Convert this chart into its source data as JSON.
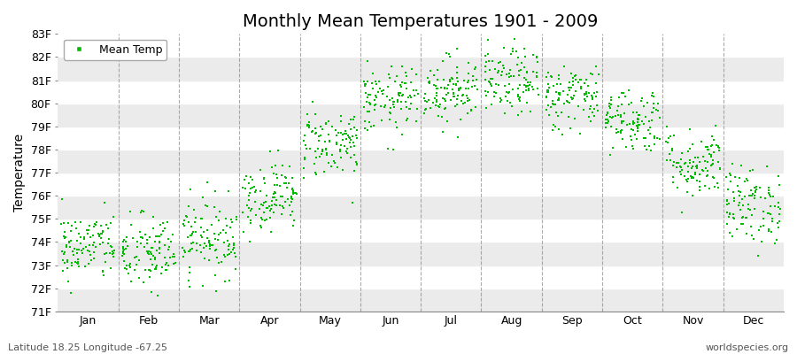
{
  "title": "Monthly Mean Temperatures 1901 - 2009",
  "ylabel": "Temperature",
  "xlabel": "",
  "latitude_label": "Latitude 18.25 Longitude -67.25",
  "watermark": "worldspecies.org",
  "legend_label": "Mean Temp",
  "dot_color": "#00bb00",
  "background_color": "#ffffff",
  "stripe_color_light": "#ebebeb",
  "stripe_color_white": "#ffffff",
  "ytick_labels": [
    "71F",
    "72F",
    "73F",
    "74F",
    "75F",
    "76F",
    "77F",
    "78F",
    "79F",
    "80F",
    "81F",
    "82F",
    "83F"
  ],
  "ytick_values": [
    71,
    72,
    73,
    74,
    75,
    76,
    77,
    78,
    79,
    80,
    81,
    82,
    83
  ],
  "ylim": [
    71,
    83
  ],
  "month_names": [
    "Jan",
    "Feb",
    "Mar",
    "Apr",
    "May",
    "Jun",
    "Jul",
    "Aug",
    "Sep",
    "Oct",
    "Nov",
    "Dec"
  ],
  "month_mean_temps": [
    73.8,
    73.5,
    74.2,
    76.0,
    78.3,
    80.1,
    80.6,
    80.9,
    80.3,
    79.3,
    77.4,
    75.6
  ],
  "month_std_temps": [
    0.75,
    0.85,
    0.85,
    0.75,
    0.75,
    0.72,
    0.72,
    0.72,
    0.72,
    0.72,
    0.75,
    0.85
  ],
  "n_years": 109,
  "seed": 42,
  "title_fontsize": 14,
  "axis_label_fontsize": 10,
  "tick_fontsize": 9,
  "legend_fontsize": 9,
  "dot_size": 3,
  "dot_marker": "s"
}
